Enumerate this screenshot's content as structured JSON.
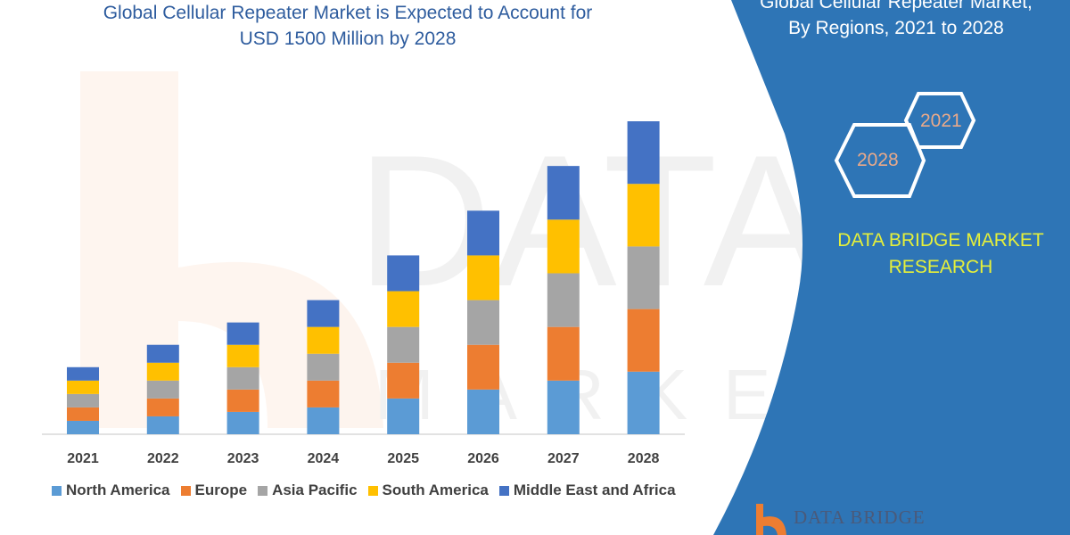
{
  "title_lines": [
    "Global Cellular Repeater Market is Expected to Account for",
    "USD 1500 Million by 2028"
  ],
  "side_panel": {
    "title_lines": [
      "Global Cellular Repeater Market,",
      "By Regions, 2021 to 2028"
    ],
    "hex_years": [
      "2021",
      "2028"
    ],
    "brand_lines": [
      "DATA BRIDGE MARKET",
      "RESEARCH"
    ],
    "logo_text": "DATA BRIDGE",
    "panel_color": "#2e75b6"
  },
  "chart_data": {
    "type": "bar",
    "stacked": true,
    "categories": [
      "2021",
      "2022",
      "2023",
      "2024",
      "2025",
      "2026",
      "2027",
      "2028"
    ],
    "series": [
      {
        "name": "North America",
        "color": "#5b9bd5",
        "values": [
          15,
          20,
          25,
          30,
          40,
          50,
          60,
          70
        ]
      },
      {
        "name": "Europe",
        "color": "#ed7d31",
        "values": [
          15,
          20,
          25,
          30,
          40,
          50,
          60,
          70
        ]
      },
      {
        "name": "Asia Pacific",
        "color": "#a5a5a5",
        "values": [
          15,
          20,
          25,
          30,
          40,
          50,
          60,
          70
        ]
      },
      {
        "name": "South America",
        "color": "#ffc000",
        "values": [
          15,
          20,
          25,
          30,
          40,
          50,
          60,
          70
        ]
      },
      {
        "name": "Middle East and Africa",
        "color": "#4472c4",
        "values": [
          15,
          20,
          25,
          30,
          40,
          50,
          60,
          70
        ]
      }
    ],
    "legend_position": "bottom",
    "grid": false,
    "y_axis_shown": false
  }
}
